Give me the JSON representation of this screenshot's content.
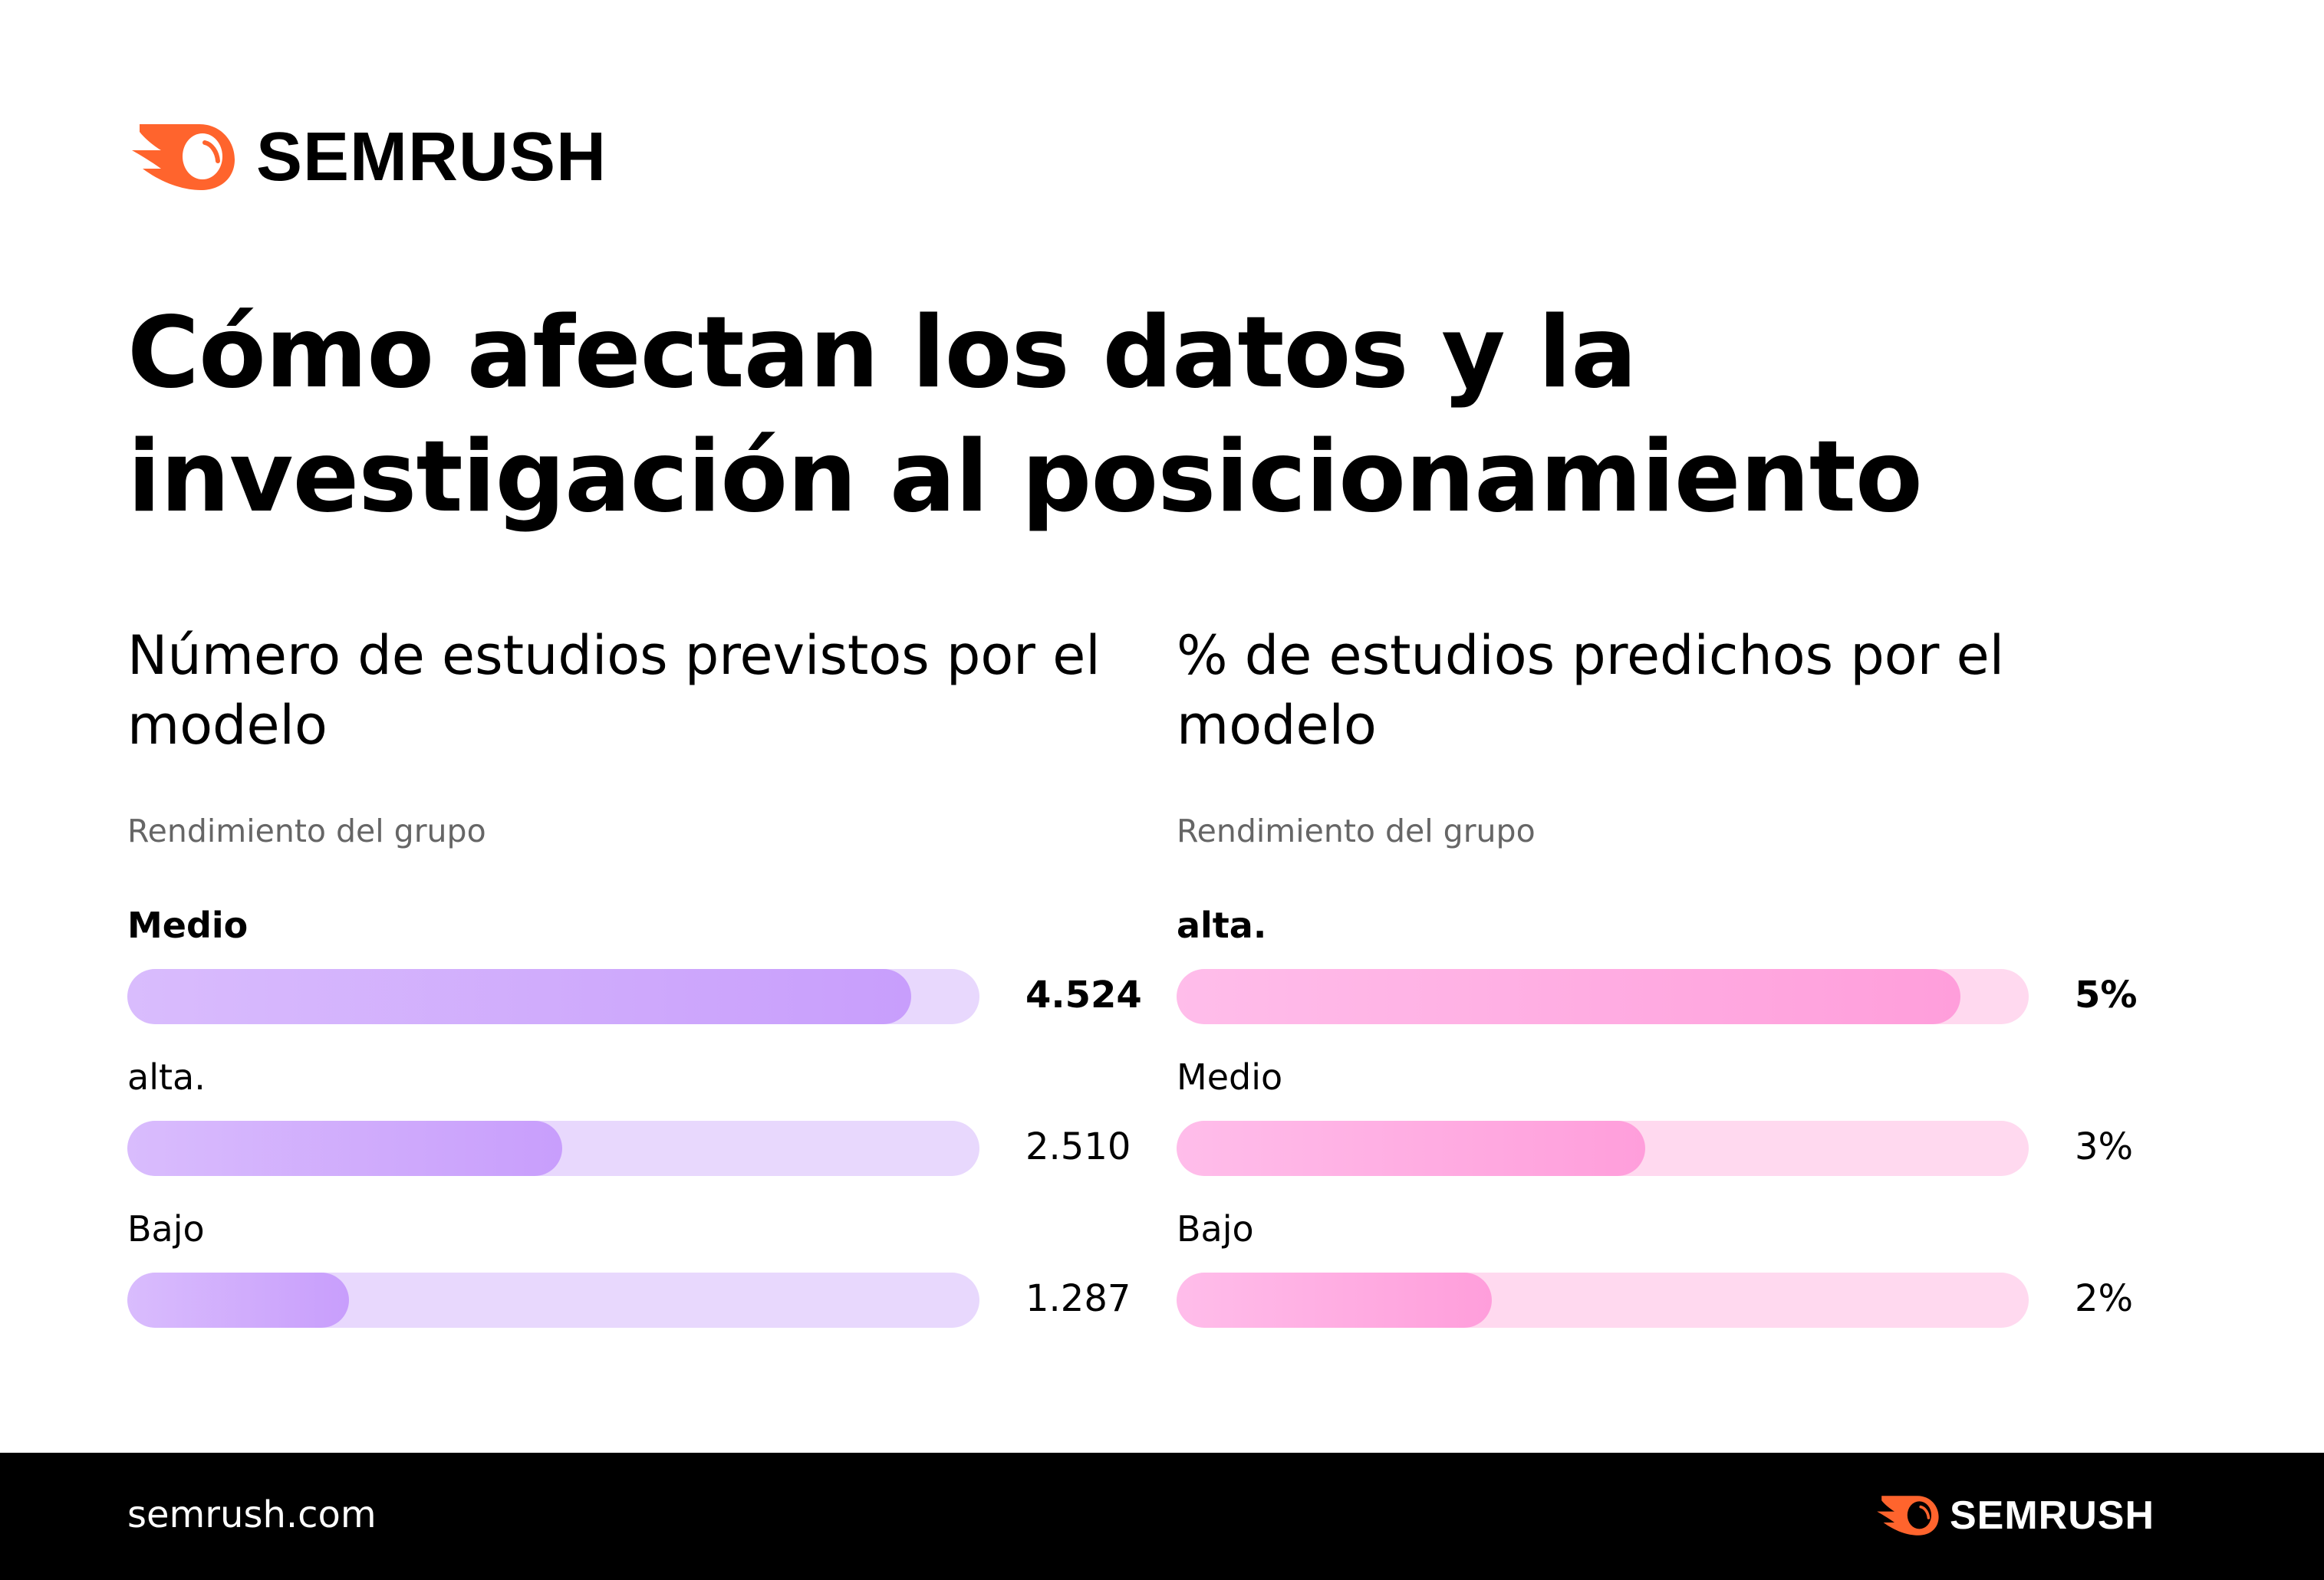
{
  "brand": {
    "name": "SEMRUSH",
    "color": "#ff642d"
  },
  "title": "Cómo afectan los datos y la investigación al posicionamiento",
  "footer": {
    "url": "semrush.com",
    "brand": "SEMRUSH"
  },
  "chart_data": [
    {
      "type": "bar",
      "orientation": "horizontal",
      "title": "Número de estudios previstos por el modelo",
      "subtitle": "Rendimiento del grupo",
      "categories": [
        "Medio",
        "alta.",
        "Bajo"
      ],
      "values": [
        4524,
        2510,
        1287
      ],
      "value_labels": [
        "4.524",
        "2.510",
        "1.287"
      ],
      "fill_percent": [
        92,
        51,
        26
      ],
      "colors": {
        "fill_start": "#d9bcfd",
        "fill_end": "#c89efc",
        "track": "#e8d8fd"
      }
    },
    {
      "type": "bar",
      "orientation": "horizontal",
      "title": "% de estudios predichos por el modelo",
      "subtitle": "Rendimiento del grupo",
      "categories": [
        "alta.",
        "Medio",
        "Bajo"
      ],
      "values": [
        5,
        3,
        2
      ],
      "value_labels": [
        "5%",
        "3%",
        "2%"
      ],
      "fill_percent": [
        92,
        55,
        37
      ],
      "colors": {
        "fill_start": "#ffbdea",
        "fill_end": "#ff9edb",
        "track": "#ffd9ef"
      }
    }
  ]
}
